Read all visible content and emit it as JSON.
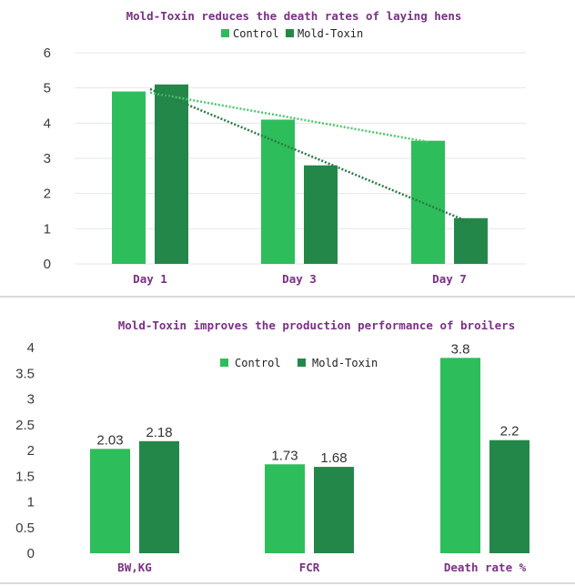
{
  "colors": {
    "control": "#2ebd5b",
    "mold_toxin": "#24874a",
    "trend_control": "#4cc969",
    "trend_mold": "#2a7a46",
    "grid": "#e6e6e6",
    "title": "#7b2f87"
  },
  "chart_data": [
    {
      "type": "bar",
      "title": "Mold-Toxin reduces the death rates of laying hens",
      "categories": [
        "Day 1",
        "Day 3",
        "Day 7"
      ],
      "series": [
        {
          "name": "Control",
          "values": [
            4.9,
            4.1,
            3.5
          ]
        },
        {
          "name": "Mold-Toxin",
          "values": [
            5.1,
            2.8,
            1.3
          ]
        }
      ],
      "ylim": [
        0,
        6
      ],
      "yticks": [
        "0",
        "1",
        "2",
        "3",
        "4",
        "5",
        "6"
      ],
      "trendlines": true,
      "legend": "top-center",
      "grid": true
    },
    {
      "type": "bar",
      "title": "Mold-Toxin improves the production performance of broilers",
      "categories": [
        "BW,KG",
        "FCR",
        "Death rate %"
      ],
      "series": [
        {
          "name": "Control",
          "values": [
            2.03,
            1.73,
            3.8
          ],
          "labels": [
            "2.03",
            "1.73",
            "3.8"
          ]
        },
        {
          "name": "Mold-Toxin",
          "values": [
            2.18,
            1.68,
            2.2
          ],
          "labels": [
            "2.18",
            "1.68",
            "2.2"
          ]
        }
      ],
      "ylim": [
        0,
        4
      ],
      "yticks": [
        "0",
        "0.5",
        "1",
        "1.5",
        "2",
        "2.5",
        "3",
        "3.5",
        "4"
      ],
      "legend": "top-center",
      "grid": false
    }
  ]
}
